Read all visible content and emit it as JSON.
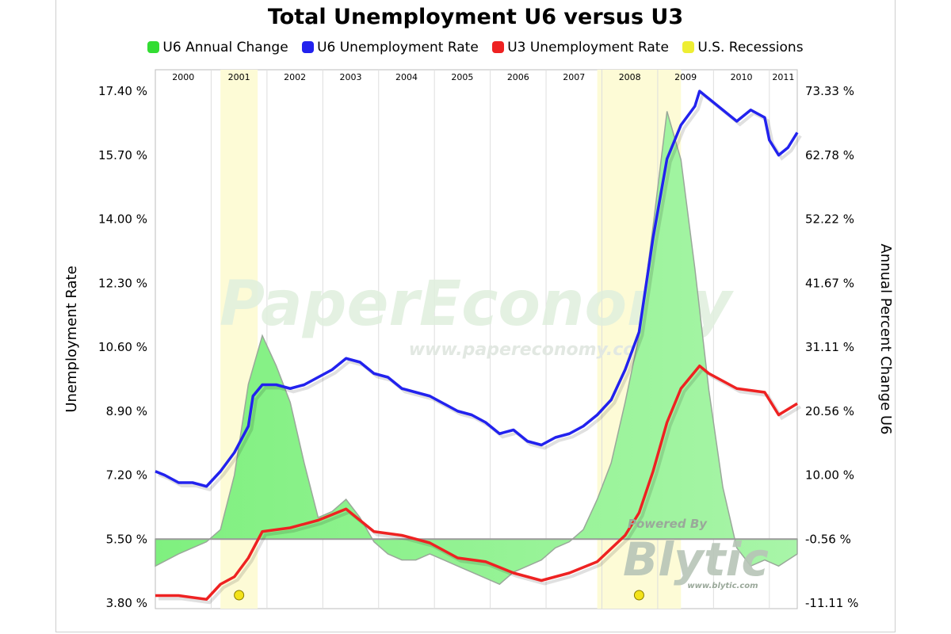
{
  "chart_data": {
    "type": "line",
    "title": "Total Unemployment U6 versus U3",
    "legend": [
      {
        "label": "U6 Annual Change",
        "color": "#33dd33"
      },
      {
        "label": "U6 Unemployment Rate",
        "color": "#2222ee"
      },
      {
        "label": "U3 Unemployment Rate",
        "color": "#ee2222"
      },
      {
        "label": "U.S. Recessions",
        "color": "#eeee33"
      }
    ],
    "legend_position": "top",
    "ylabel": "Unemployment Rate",
    "y2label": "Annual Percent Change U6",
    "ylim": [
      3.8,
      17.4
    ],
    "y2lim": [
      -11.11,
      73.33
    ],
    "x_range": [
      "2000-01",
      "2011-07"
    ],
    "left_ticks": [
      "17.40 %",
      "15.70 %",
      "14.00 %",
      "12.30 %",
      "10.60 %",
      "8.90 %",
      "7.20 %",
      "5.50 %",
      "3.80 %"
    ],
    "right_ticks": [
      "73.33 %",
      "62.78 %",
      "52.22 %",
      "41.67 %",
      "31.11 %",
      "20.56 %",
      "10.00 %",
      "-0.56 %",
      "-11.11 %"
    ],
    "year_labels": [
      "2000",
      "2001",
      "2002",
      "2003",
      "2004",
      "2005",
      "2006",
      "2007",
      "2008",
      "2009",
      "2010",
      "2011"
    ],
    "recessions": [
      [
        "2001-03",
        "2001-11"
      ],
      [
        "2007-12",
        "2009-06"
      ]
    ],
    "grid": "vertical year lines",
    "series": [
      {
        "name": "U6 Unemployment Rate",
        "axis": "left",
        "style": "line",
        "color": "#2222ee",
        "points": [
          [
            "2000-01",
            7.3
          ],
          [
            "2000-03",
            7.2
          ],
          [
            "2000-06",
            7.0
          ],
          [
            "2000-09",
            7.0
          ],
          [
            "2000-12",
            6.9
          ],
          [
            "2001-03",
            7.3
          ],
          [
            "2001-06",
            7.8
          ],
          [
            "2001-09",
            8.5
          ],
          [
            "2001-10",
            9.3
          ],
          [
            "2001-12",
            9.6
          ],
          [
            "2002-03",
            9.6
          ],
          [
            "2002-06",
            9.5
          ],
          [
            "2002-09",
            9.6
          ],
          [
            "2002-12",
            9.8
          ],
          [
            "2003-03",
            10.0
          ],
          [
            "2003-06",
            10.3
          ],
          [
            "2003-09",
            10.2
          ],
          [
            "2003-12",
            9.9
          ],
          [
            "2004-03",
            9.8
          ],
          [
            "2004-06",
            9.5
          ],
          [
            "2004-09",
            9.4
          ],
          [
            "2004-12",
            9.3
          ],
          [
            "2005-03",
            9.1
          ],
          [
            "2005-06",
            8.9
          ],
          [
            "2005-09",
            8.8
          ],
          [
            "2005-12",
            8.6
          ],
          [
            "2006-03",
            8.3
          ],
          [
            "2006-06",
            8.4
          ],
          [
            "2006-09",
            8.1
          ],
          [
            "2006-12",
            8.0
          ],
          [
            "2007-03",
            8.2
          ],
          [
            "2007-06",
            8.3
          ],
          [
            "2007-09",
            8.5
          ],
          [
            "2007-12",
            8.8
          ],
          [
            "2008-03",
            9.2
          ],
          [
            "2008-06",
            10.0
          ],
          [
            "2008-09",
            11.0
          ],
          [
            "2008-12",
            13.5
          ],
          [
            "2009-03",
            15.6
          ],
          [
            "2009-06",
            16.5
          ],
          [
            "2009-09",
            17.0
          ],
          [
            "2009-10",
            17.4
          ],
          [
            "2009-12",
            17.2
          ],
          [
            "2010-03",
            16.9
          ],
          [
            "2010-06",
            16.6
          ],
          [
            "2010-09",
            16.9
          ],
          [
            "2010-12",
            16.7
          ],
          [
            "2011-01",
            16.1
          ],
          [
            "2011-03",
            15.7
          ],
          [
            "2011-05",
            15.9
          ],
          [
            "2011-07",
            16.3
          ]
        ]
      },
      {
        "name": "U3 Unemployment Rate",
        "axis": "left",
        "style": "line",
        "color": "#ee2222",
        "points": [
          [
            "2000-01",
            4.0
          ],
          [
            "2000-06",
            4.0
          ],
          [
            "2000-12",
            3.9
          ],
          [
            "2001-03",
            4.3
          ],
          [
            "2001-06",
            4.5
          ],
          [
            "2001-09",
            5.0
          ],
          [
            "2001-12",
            5.7
          ],
          [
            "2002-06",
            5.8
          ],
          [
            "2002-12",
            6.0
          ],
          [
            "2003-06",
            6.3
          ],
          [
            "2003-12",
            5.7
          ],
          [
            "2004-06",
            5.6
          ],
          [
            "2004-12",
            5.4
          ],
          [
            "2005-06",
            5.0
          ],
          [
            "2005-12",
            4.9
          ],
          [
            "2006-06",
            4.6
          ],
          [
            "2006-12",
            4.4
          ],
          [
            "2007-06",
            4.6
          ],
          [
            "2007-12",
            4.9
          ],
          [
            "2008-06",
            5.6
          ],
          [
            "2008-09",
            6.2
          ],
          [
            "2008-12",
            7.3
          ],
          [
            "2009-03",
            8.6
          ],
          [
            "2009-06",
            9.5
          ],
          [
            "2009-10",
            10.1
          ],
          [
            "2009-12",
            9.9
          ],
          [
            "2010-06",
            9.5
          ],
          [
            "2010-12",
            9.4
          ],
          [
            "2011-03",
            8.8
          ],
          [
            "2011-07",
            9.1
          ]
        ]
      },
      {
        "name": "U6 Annual Change",
        "axis": "right",
        "style": "area",
        "color": "#33dd33",
        "points": [
          [
            "2000-01",
            -5
          ],
          [
            "2000-06",
            -3
          ],
          [
            "2000-12",
            -1
          ],
          [
            "2001-03",
            1
          ],
          [
            "2001-06",
            10
          ],
          [
            "2001-09",
            25
          ],
          [
            "2001-12",
            33
          ],
          [
            "2002-03",
            28
          ],
          [
            "2002-06",
            22
          ],
          [
            "2002-09",
            12
          ],
          [
            "2002-12",
            3
          ],
          [
            "2003-03",
            4
          ],
          [
            "2003-06",
            6
          ],
          [
            "2003-09",
            3
          ],
          [
            "2003-12",
            -1
          ],
          [
            "2004-03",
            -3
          ],
          [
            "2004-06",
            -4
          ],
          [
            "2004-09",
            -4
          ],
          [
            "2004-12",
            -3
          ],
          [
            "2005-03",
            -4
          ],
          [
            "2005-06",
            -5
          ],
          [
            "2005-09",
            -6
          ],
          [
            "2005-12",
            -7
          ],
          [
            "2006-03",
            -8
          ],
          [
            "2006-06",
            -6
          ],
          [
            "2006-09",
            -5
          ],
          [
            "2006-12",
            -4
          ],
          [
            "2007-03",
            -2
          ],
          [
            "2007-06",
            -1
          ],
          [
            "2007-09",
            1
          ],
          [
            "2007-12",
            6
          ],
          [
            "2008-03",
            12
          ],
          [
            "2008-06",
            22
          ],
          [
            "2008-09",
            33
          ],
          [
            "2008-12",
            51
          ],
          [
            "2009-03",
            70
          ],
          [
            "2009-06",
            62
          ],
          [
            "2009-09",
            44
          ],
          [
            "2009-12",
            24
          ],
          [
            "2010-03",
            8
          ],
          [
            "2010-06",
            -2
          ],
          [
            "2010-09",
            -5
          ],
          [
            "2010-12",
            -4
          ],
          [
            "2011-03",
            -5
          ],
          [
            "2011-07",
            -3
          ]
        ]
      }
    ],
    "annotations": [
      "PaperEconomy",
      "www.papereconomy.com",
      "Powered By",
      "Blytic",
      "www.blytic.com"
    ]
  }
}
